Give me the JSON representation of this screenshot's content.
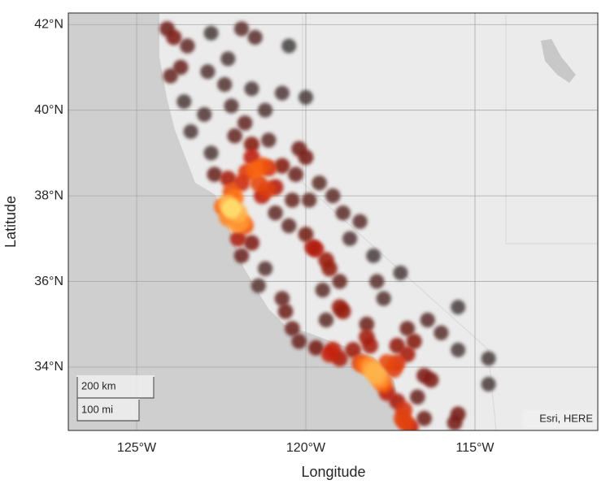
{
  "chart_data": {
    "type": "density",
    "xlabel": "Longitude",
    "ylabel": "Latitude",
    "attribution": "Esri, HERE",
    "scalebar": [
      "200 km",
      "100 mi"
    ],
    "xlim": [
      -127.02,
      -111.37
    ],
    "ylim": [
      32.52,
      42.27
    ],
    "xticks": [
      {
        "value": -125,
        "label": "125°W"
      },
      {
        "value": -120,
        "label": "120°W"
      },
      {
        "value": -115,
        "label": "115°W"
      }
    ],
    "yticks": [
      {
        "value": 34,
        "label": "34°N"
      },
      {
        "value": 36,
        "label": "36°N"
      },
      {
        "value": 38,
        "label": "38°N"
      },
      {
        "value": 40,
        "label": "40°N"
      },
      {
        "value": 42,
        "label": "42°N"
      }
    ],
    "grid": true,
    "colormap": [
      "#4a4444",
      "#7a1a12",
      "#c8200c",
      "#ff6a10",
      "#ffe070"
    ],
    "x": [
      -124.1,
      -123.9,
      -123.5,
      -122.8,
      -121.9,
      -121.5,
      -120.5,
      -122.3,
      -123.7,
      -124.0,
      -122.9,
      -122.4,
      -121.6,
      -120.7,
      -123.6,
      -122.2,
      -121.2,
      -120.0,
      -123.0,
      -121.8,
      -123.4,
      -122.1,
      -121.1,
      -120.2,
      -122.8,
      -121.6,
      -121.3,
      -121.5,
      -122.7,
      -122.3,
      -121.9,
      -120.7,
      -120.0,
      -120.3,
      -120.9,
      -121.3,
      -122.2,
      -122.1,
      -122.3,
      -122.45,
      -122.2,
      -122.0,
      -122.3,
      -121.9,
      -122.05,
      -121.8,
      -122.0,
      -121.6,
      -121.9,
      -121.2,
      -121.4,
      -120.9,
      -120.5,
      -120.0,
      -119.8,
      -119.7,
      -119.4,
      -119.3,
      -119.0,
      -119.5,
      -119.0,
      -118.9,
      -119.4,
      -120.7,
      -120.6,
      -120.4,
      -120.2,
      -119.7,
      -119.2,
      -119.0,
      -118.4,
      -118.25,
      -118.1,
      -118.0,
      -117.9,
      -117.8,
      -117.6,
      -117.3,
      -117.4,
      -118.1,
      -118.2,
      -117.7,
      -117.3,
      -117.1,
      -117.15,
      -117.05,
      -116.9,
      -116.5,
      -115.6,
      -115.5,
      -116.3,
      -116.5,
      -117.0,
      -117.3,
      -117.0,
      -116.4,
      -116.0,
      -115.5,
      -114.6,
      -114.6,
      -115.5,
      -117.7,
      -117.9,
      -118.0,
      -118.4,
      -118.9,
      -119.2,
      -119.6,
      -120.4,
      -119.9,
      -118.7,
      -117.2,
      -116.8,
      -118.2,
      -117.6,
      -116.7,
      -119.3,
      -118.6,
      -121.4,
      -121.75,
      -121.15,
      -121.6,
      -121.1
    ],
    "y": [
      41.9,
      41.7,
      41.5,
      41.8,
      41.9,
      41.7,
      41.5,
      41.2,
      41.0,
      40.8,
      40.9,
      40.6,
      40.5,
      40.4,
      40.2,
      40.1,
      40.0,
      40.3,
      39.9,
      39.7,
      39.5,
      39.4,
      39.3,
      39.1,
      39.0,
      38.9,
      38.7,
      38.6,
      38.5,
      38.4,
      38.3,
      38.7,
      38.9,
      38.5,
      38.2,
      38.0,
      38.1,
      37.95,
      37.8,
      37.75,
      37.7,
      37.6,
      37.5,
      37.4,
      37.35,
      37.3,
      37.0,
      36.9,
      36.6,
      36.3,
      35.9,
      37.6,
      37.3,
      37.1,
      36.8,
      36.75,
      36.5,
      36.3,
      36.0,
      35.8,
      35.4,
      35.3,
      35.1,
      35.6,
      35.3,
      34.9,
      34.6,
      34.45,
      34.4,
      34.2,
      34.1,
      34.05,
      34.0,
      33.9,
      33.8,
      33.7,
      34.1,
      34.1,
      33.95,
      34.5,
      34.7,
      33.6,
      33.2,
      33.0,
      32.8,
      32.7,
      32.6,
      32.8,
      32.7,
      32.9,
      33.7,
      33.8,
      34.3,
      34.5,
      34.9,
      35.1,
      34.8,
      34.4,
      34.2,
      33.6,
      35.4,
      35.6,
      36.0,
      36.6,
      37.4,
      37.6,
      38.0,
      38.3,
      37.9,
      37.9,
      37.0,
      36.2,
      34.6,
      35.0,
      33.4,
      33.3,
      34.3,
      34.4,
      38.3,
      38.55,
      38.15,
      39.2,
      38.65
    ]
  }
}
